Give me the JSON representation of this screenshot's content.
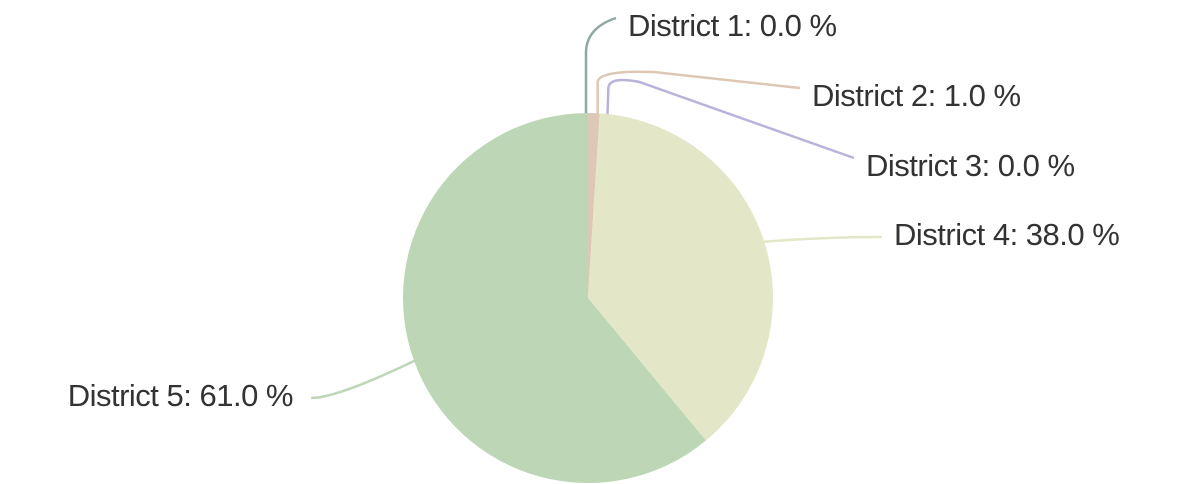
{
  "chart_data": {
    "type": "pie",
    "values": [
      0,
      1,
      0,
      38,
      61
    ],
    "value_labels": [
      "District 1: 0.0 %",
      "District 2: 1.0 %",
      "District 3: 0.0 %",
      "District 4: 38.0 %",
      "District 5: 61.0 %"
    ],
    "colors": [
      "#8fa8a6",
      "#dcc8b4",
      "#b9b2da",
      "#e3e7c7",
      "#bdd6b6"
    ]
  }
}
